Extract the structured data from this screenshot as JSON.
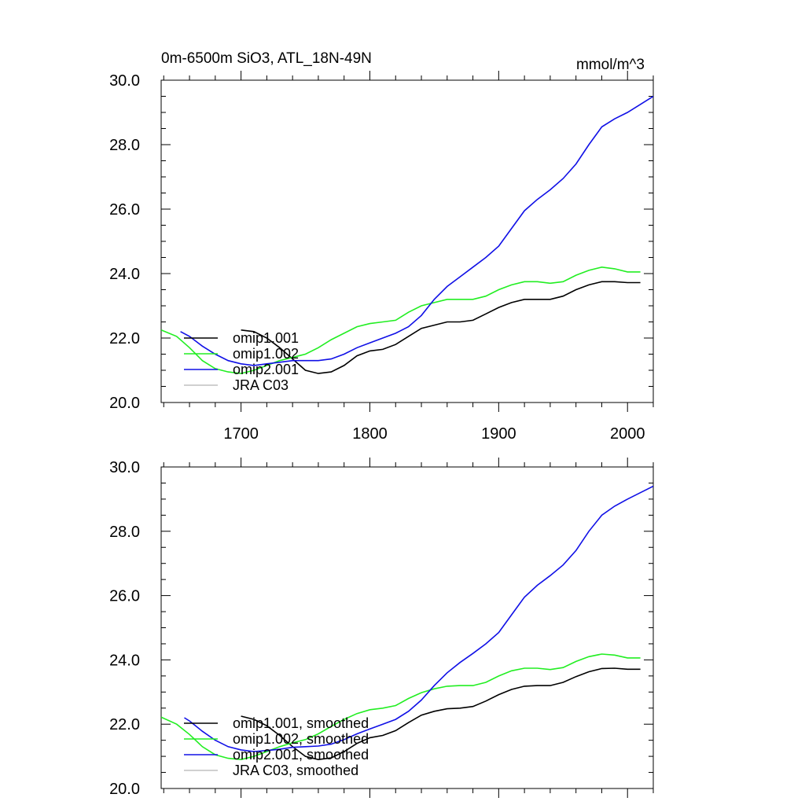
{
  "chart_data": [
    {
      "type": "line",
      "title": "0m-6500m SiO3, ATL_18N-49N",
      "units": "mmol/m^3",
      "xlim": [
        1638,
        2020
      ],
      "ylim": [
        20.0,
        30.0
      ],
      "x_ticks": [
        1700,
        1800,
        1900,
        2000
      ],
      "x_tick_labels": [
        "1700",
        "1800",
        "1900",
        "2000"
      ],
      "y_ticks": [
        20.0,
        22.0,
        24.0,
        26.0,
        28.0,
        30.0
      ],
      "y_tick_labels": [
        "20.0",
        "22.0",
        "24.0",
        "26.0",
        "28.0",
        "30.0"
      ],
      "legend_position": "bottom-left",
      "series": [
        {
          "name": "omip1.001",
          "color": "#000000",
          "points": [
            [
              1700,
              22.25
            ],
            [
              1710,
              22.2
            ],
            [
              1720,
              22.0
            ],
            [
              1730,
              21.7
            ],
            [
              1740,
              21.35
            ],
            [
              1750,
              21.0
            ],
            [
              1760,
              20.9
            ],
            [
              1770,
              20.95
            ],
            [
              1780,
              21.15
            ],
            [
              1790,
              21.45
            ],
            [
              1800,
              21.6
            ],
            [
              1810,
              21.65
            ],
            [
              1820,
              21.8
            ],
            [
              1830,
              22.05
            ],
            [
              1840,
              22.3
            ],
            [
              1850,
              22.4
            ],
            [
              1860,
              22.5
            ],
            [
              1870,
              22.5
            ],
            [
              1880,
              22.55
            ],
            [
              1890,
              22.75
            ],
            [
              1900,
              22.95
            ],
            [
              1910,
              23.1
            ],
            [
              1920,
              23.2
            ],
            [
              1930,
              23.2
            ],
            [
              1940,
              23.2
            ],
            [
              1950,
              23.3
            ],
            [
              1960,
              23.5
            ],
            [
              1970,
              23.65
            ],
            [
              1980,
              23.75
            ],
            [
              1990,
              23.75
            ],
            [
              2000,
              23.72
            ],
            [
              2010,
              23.72
            ]
          ]
        },
        {
          "name": "omip1.002",
          "color": "#22ee22",
          "points": [
            [
              1638,
              22.25
            ],
            [
              1650,
              22.05
            ],
            [
              1660,
              21.7
            ],
            [
              1670,
              21.3
            ],
            [
              1680,
              21.05
            ],
            [
              1690,
              20.95
            ],
            [
              1700,
              20.9
            ],
            [
              1710,
              21.0
            ],
            [
              1720,
              21.15
            ],
            [
              1730,
              21.3
            ],
            [
              1740,
              21.4
            ],
            [
              1750,
              21.5
            ],
            [
              1760,
              21.7
            ],
            [
              1770,
              21.95
            ],
            [
              1780,
              22.15
            ],
            [
              1790,
              22.35
            ],
            [
              1800,
              22.45
            ],
            [
              1810,
              22.5
            ],
            [
              1820,
              22.55
            ],
            [
              1830,
              22.8
            ],
            [
              1840,
              23.0
            ],
            [
              1850,
              23.1
            ],
            [
              1860,
              23.2
            ],
            [
              1870,
              23.2
            ],
            [
              1880,
              23.2
            ],
            [
              1890,
              23.3
            ],
            [
              1900,
              23.5
            ],
            [
              1910,
              23.65
            ],
            [
              1920,
              23.75
            ],
            [
              1930,
              23.75
            ],
            [
              1940,
              23.7
            ],
            [
              1950,
              23.75
            ],
            [
              1960,
              23.95
            ],
            [
              1970,
              24.1
            ],
            [
              1980,
              24.2
            ],
            [
              1990,
              24.15
            ],
            [
              2000,
              24.05
            ],
            [
              2010,
              24.05
            ]
          ]
        },
        {
          "name": "omip2.001",
          "color": "#1010e6",
          "points": [
            [
              1653,
              22.2
            ],
            [
              1660,
              22.05
            ],
            [
              1670,
              21.75
            ],
            [
              1680,
              21.5
            ],
            [
              1690,
              21.3
            ],
            [
              1700,
              21.2
            ],
            [
              1710,
              21.15
            ],
            [
              1720,
              21.2
            ],
            [
              1730,
              21.25
            ],
            [
              1740,
              21.3
            ],
            [
              1750,
              21.3
            ],
            [
              1760,
              21.3
            ],
            [
              1770,
              21.35
            ],
            [
              1780,
              21.5
            ],
            [
              1790,
              21.7
            ],
            [
              1800,
              21.85
            ],
            [
              1810,
              22.0
            ],
            [
              1820,
              22.15
            ],
            [
              1830,
              22.35
            ],
            [
              1840,
              22.7
            ],
            [
              1850,
              23.2
            ],
            [
              1860,
              23.6
            ],
            [
              1870,
              23.9
            ],
            [
              1880,
              24.2
            ],
            [
              1890,
              24.5
            ],
            [
              1900,
              24.85
            ],
            [
              1910,
              25.4
            ],
            [
              1920,
              25.95
            ],
            [
              1930,
              26.3
            ],
            [
              1940,
              26.6
            ],
            [
              1950,
              26.95
            ],
            [
              1960,
              27.4
            ],
            [
              1970,
              28.0
            ],
            [
              1980,
              28.55
            ],
            [
              1990,
              28.8
            ],
            [
              2000,
              29.0
            ],
            [
              2010,
              29.25
            ],
            [
              2020,
              29.5
            ]
          ]
        },
        {
          "name": "JRA C03",
          "color": "#c0c0c0",
          "points": []
        }
      ]
    },
    {
      "type": "line",
      "title": "",
      "units": "",
      "xlim": [
        1638,
        2020
      ],
      "ylim": [
        20.0,
        30.0
      ],
      "x_ticks": [
        1700,
        1800,
        1900,
        2000
      ],
      "x_tick_labels": [],
      "y_ticks": [
        20.0,
        22.0,
        24.0,
        26.0,
        28.0,
        30.0
      ],
      "y_tick_labels": [
        "20.0",
        "22.0",
        "24.0",
        "26.0",
        "28.0",
        "30.0"
      ],
      "legend_position": "bottom-left",
      "series": [
        {
          "name": "omip1.001, smoothed",
          "color": "#000000",
          "points": [
            [
              1700,
              22.25
            ],
            [
              1710,
              22.15
            ],
            [
              1720,
              21.95
            ],
            [
              1730,
              21.65
            ],
            [
              1740,
              21.3
            ],
            [
              1750,
              21.0
            ],
            [
              1760,
              20.9
            ],
            [
              1770,
              20.95
            ],
            [
              1780,
              21.15
            ],
            [
              1790,
              21.4
            ],
            [
              1800,
              21.58
            ],
            [
              1810,
              21.65
            ],
            [
              1820,
              21.8
            ],
            [
              1830,
              22.05
            ],
            [
              1840,
              22.28
            ],
            [
              1850,
              22.4
            ],
            [
              1860,
              22.48
            ],
            [
              1870,
              22.5
            ],
            [
              1880,
              22.55
            ],
            [
              1890,
              22.72
            ],
            [
              1900,
              22.92
            ],
            [
              1910,
              23.08
            ],
            [
              1920,
              23.18
            ],
            [
              1930,
              23.2
            ],
            [
              1940,
              23.2
            ],
            [
              1950,
              23.3
            ],
            [
              1960,
              23.48
            ],
            [
              1970,
              23.63
            ],
            [
              1980,
              23.73
            ],
            [
              1990,
              23.74
            ],
            [
              2000,
              23.71
            ],
            [
              2010,
              23.71
            ]
          ]
        },
        {
          "name": "omip1.002, smoothed",
          "color": "#22ee22",
          "points": [
            [
              1638,
              22.22
            ],
            [
              1650,
              22.0
            ],
            [
              1660,
              21.68
            ],
            [
              1670,
              21.3
            ],
            [
              1680,
              21.05
            ],
            [
              1690,
              20.94
            ],
            [
              1700,
              20.9
            ],
            [
              1710,
              21.0
            ],
            [
              1720,
              21.15
            ],
            [
              1730,
              21.3
            ],
            [
              1740,
              21.42
            ],
            [
              1750,
              21.52
            ],
            [
              1760,
              21.7
            ],
            [
              1770,
              21.93
            ],
            [
              1780,
              22.15
            ],
            [
              1790,
              22.33
            ],
            [
              1800,
              22.45
            ],
            [
              1810,
              22.5
            ],
            [
              1820,
              22.58
            ],
            [
              1830,
              22.8
            ],
            [
              1840,
              22.98
            ],
            [
              1850,
              23.1
            ],
            [
              1860,
              23.18
            ],
            [
              1870,
              23.2
            ],
            [
              1880,
              23.2
            ],
            [
              1890,
              23.3
            ],
            [
              1900,
              23.5
            ],
            [
              1910,
              23.66
            ],
            [
              1920,
              23.74
            ],
            [
              1930,
              23.74
            ],
            [
              1940,
              23.7
            ],
            [
              1950,
              23.76
            ],
            [
              1960,
              23.95
            ],
            [
              1970,
              24.1
            ],
            [
              1980,
              24.18
            ],
            [
              1990,
              24.15
            ],
            [
              2000,
              24.06
            ],
            [
              2010,
              24.06
            ]
          ]
        },
        {
          "name": "omip2.001, smoothed",
          "color": "#1010e6",
          "points": [
            [
              1656,
              22.2
            ],
            [
              1660,
              22.1
            ],
            [
              1670,
              21.78
            ],
            [
              1680,
              21.5
            ],
            [
              1690,
              21.3
            ],
            [
              1700,
              21.2
            ],
            [
              1710,
              21.15
            ],
            [
              1720,
              21.18
            ],
            [
              1730,
              21.22
            ],
            [
              1740,
              21.28
            ],
            [
              1750,
              21.3
            ],
            [
              1760,
              21.32
            ],
            [
              1770,
              21.38
            ],
            [
              1780,
              21.52
            ],
            [
              1790,
              21.7
            ],
            [
              1800,
              21.85
            ],
            [
              1810,
              22.0
            ],
            [
              1820,
              22.15
            ],
            [
              1830,
              22.4
            ],
            [
              1840,
              22.75
            ],
            [
              1850,
              23.2
            ],
            [
              1860,
              23.6
            ],
            [
              1870,
              23.92
            ],
            [
              1880,
              24.2
            ],
            [
              1890,
              24.5
            ],
            [
              1900,
              24.85
            ],
            [
              1910,
              25.4
            ],
            [
              1920,
              25.95
            ],
            [
              1930,
              26.32
            ],
            [
              1940,
              26.62
            ],
            [
              1950,
              26.95
            ],
            [
              1960,
              27.4
            ],
            [
              1970,
              28.0
            ],
            [
              1980,
              28.5
            ],
            [
              1990,
              28.78
            ],
            [
              2000,
              29.0
            ],
            [
              2010,
              29.2
            ],
            [
              2020,
              29.4
            ]
          ]
        },
        {
          "name": "JRA C03, smoothed",
          "color": "#c0c0c0",
          "points": []
        }
      ]
    }
  ]
}
